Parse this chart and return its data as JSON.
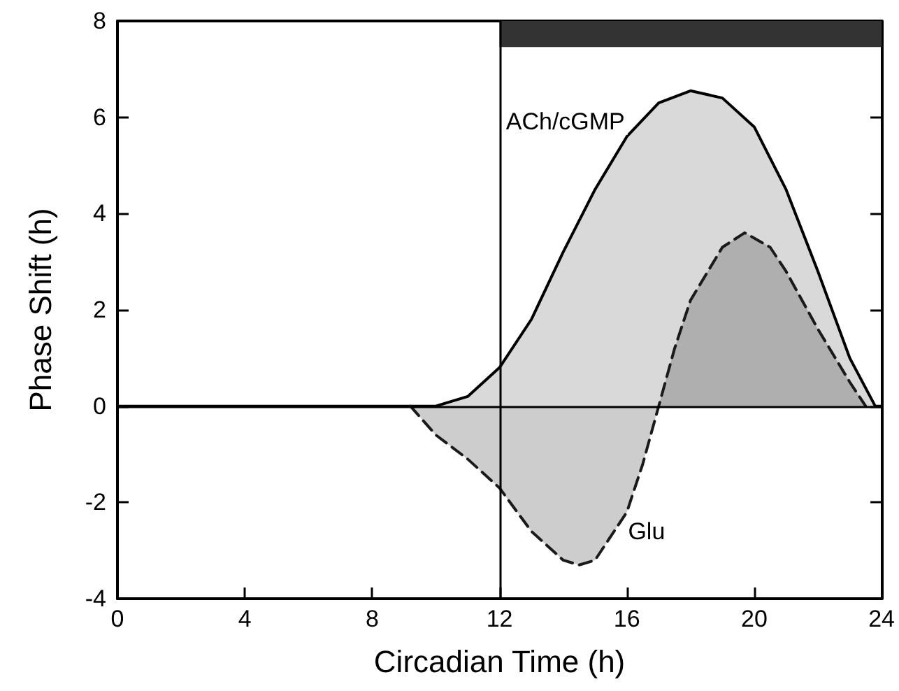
{
  "chart_data": {
    "type": "area",
    "xlabel": "Circadian Time (h)",
    "ylabel": "Phase Shift (h)",
    "xlim": [
      0,
      24
    ],
    "xticks": [
      0,
      4,
      8,
      12,
      16,
      20,
      24
    ],
    "ylim": [
      -4,
      8
    ],
    "yticks": [
      -4,
      -2,
      0,
      2,
      4,
      6,
      8
    ],
    "grid": false,
    "legend": false,
    "marker": "none",
    "series": [
      {
        "name": "ACh/cGMP",
        "color": "#000000",
        "line_style": "solid",
        "x": [
          0,
          10,
          11,
          12,
          13,
          14,
          15,
          16,
          17,
          18,
          19,
          20,
          21,
          22,
          23,
          23.8,
          24
        ],
        "values": [
          0,
          0,
          0.2,
          0.8,
          1.8,
          3.2,
          4.5,
          5.6,
          6.3,
          6.55,
          6.4,
          5.8,
          4.5,
          2.8,
          1.0,
          0,
          0
        ]
      },
      {
        "name": "Glu",
        "color": "#1a1a1a",
        "line_style": "dashed",
        "x": [
          9.2,
          10,
          11,
          12,
          13,
          14,
          14.5,
          15,
          16,
          16.5,
          17,
          17.5,
          18,
          19,
          19.7,
          20.5,
          21,
          22,
          23,
          23.5
        ],
        "values": [
          0,
          -0.6,
          -1.1,
          -1.7,
          -2.6,
          -3.2,
          -3.3,
          -3.2,
          -2.2,
          -1.2,
          0,
          1.2,
          2.2,
          3.3,
          3.6,
          3.3,
          2.8,
          1.6,
          0.5,
          0
        ]
      }
    ],
    "ref_lines": [
      {
        "axis": "x",
        "value": 12,
        "color": "#000000"
      },
      {
        "axis": "y",
        "value": 0,
        "color": "#000000"
      }
    ],
    "bands": [
      {
        "axis": "x",
        "from": 12,
        "to": 24,
        "color": "#333333"
      }
    ]
  }
}
